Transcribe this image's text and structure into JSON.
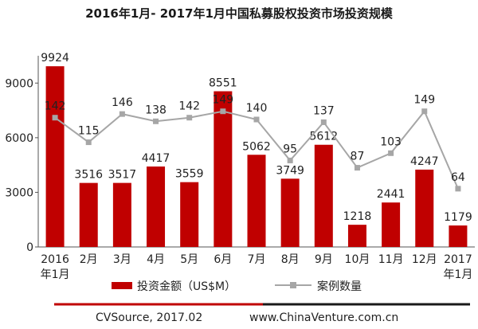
{
  "chart_data": {
    "type": "bar",
    "title": "2016年1月- 2017年1月中国私募股权投资市场投资规模",
    "categories": [
      "2016\n年1月",
      "2月",
      "3月",
      "4月",
      "5月",
      "6月",
      "7月",
      "8月",
      "9月",
      "10月",
      "11月",
      "12月",
      "2017\n年1月"
    ],
    "series": [
      {
        "name": "投资金额（US$M）",
        "type": "bar",
        "axis": "left",
        "color": "#c00000",
        "values": [
          9924,
          3516,
          3517,
          4417,
          3559,
          8551,
          5062,
          3749,
          5612,
          1218,
          2441,
          4247,
          1179
        ]
      },
      {
        "name": "案例数量",
        "type": "line",
        "axis": "right",
        "color": "#a6a6a6",
        "values": [
          142,
          115,
          146,
          138,
          142,
          149,
          140,
          95,
          137,
          87,
          103,
          149,
          64
        ]
      }
    ],
    "y_ticks": [
      "0",
      "3000",
      "6000",
      "9000"
    ],
    "ylim": [
      0,
      10500
    ],
    "right_ylim": [
      0,
      210
    ],
    "legend_position": "bottom"
  },
  "footer": {
    "source": "CVSource, 2017.02",
    "website": "www.ChinaVenture.com.cn",
    "line_color_left": "#c00000",
    "line_color_right": "#1a1a1a"
  }
}
